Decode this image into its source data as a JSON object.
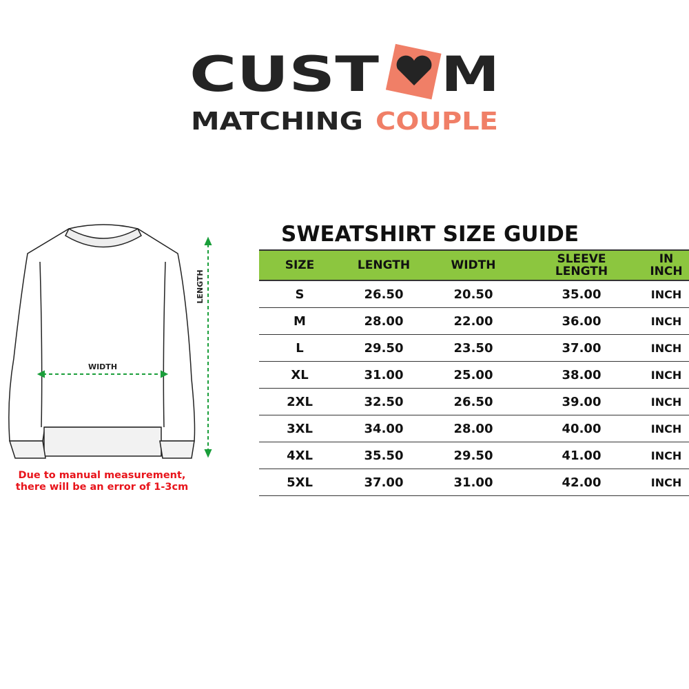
{
  "logo": {
    "line1": "CUSTOM",
    "line2_a": "MATCHING",
    "line2_b": "COUPLE",
    "dark": "#242424",
    "accent": "#f07f67"
  },
  "diagram": {
    "length_label": "LENGTH",
    "width_label": "WIDTH",
    "arrow_color": "#1a9e3a"
  },
  "note": {
    "line1": "Due to manual measurement,",
    "line2": "there will be an error of 1-3cm",
    "color": "#e8141b"
  },
  "guide": {
    "title": "SWEATSHIRT SIZE GUIDE",
    "header_color": "#8cc63f",
    "columns": [
      "SIZE",
      "LENGTH",
      "WIDTH",
      "SLEEVE LENGTH",
      "IN INCH"
    ],
    "rows": [
      [
        "S",
        "26.50",
        "20.50",
        "35.00",
        "INCH"
      ],
      [
        "M",
        "28.00",
        "22.00",
        "36.00",
        "INCH"
      ],
      [
        "L",
        "29.50",
        "23.50",
        "37.00",
        "INCH"
      ],
      [
        "XL",
        "31.00",
        "25.00",
        "38.00",
        "INCH"
      ],
      [
        "2XL",
        "32.50",
        "26.50",
        "39.00",
        "INCH"
      ],
      [
        "3XL",
        "34.00",
        "28.00",
        "40.00",
        "INCH"
      ],
      [
        "4XL",
        "35.50",
        "29.50",
        "41.00",
        "INCH"
      ],
      [
        "5XL",
        "37.00",
        "31.00",
        "42.00",
        "INCH"
      ]
    ]
  }
}
